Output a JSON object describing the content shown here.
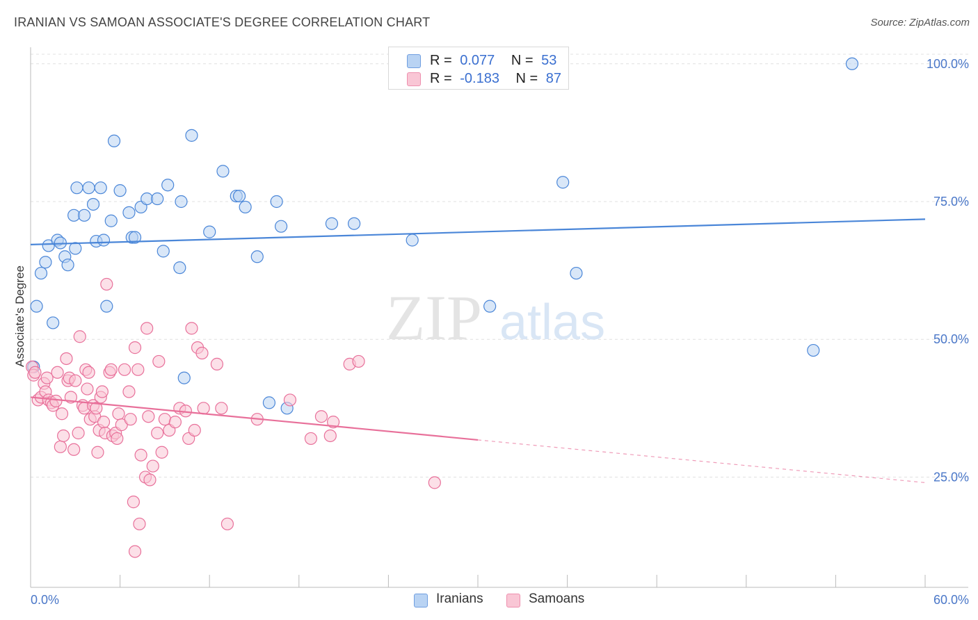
{
  "header": {
    "title": "IRANIAN VS SAMOAN ASSOCIATE'S DEGREE CORRELATION CHART",
    "source": "Source: ZipAtlas.com"
  },
  "watermark": {
    "zip": "ZIP",
    "atlas": "atlas"
  },
  "legend": {
    "rows": [
      {
        "r_label": "R =",
        "r_value": "0.077",
        "n_label": "N =",
        "n_value": "53",
        "color": "#a9c8f0"
      },
      {
        "r_label": "R =",
        "r_value": "-0.183",
        "n_label": "N =",
        "n_value": "87",
        "color": "#f7b9cc"
      }
    ]
  },
  "bottom_legend": [
    {
      "label": "Iranians",
      "color": "#a9c8f0"
    },
    {
      "label": "Samoans",
      "color": "#f7b9cc"
    }
  ],
  "chart_data": {
    "type": "scatter",
    "xlabel": "",
    "ylabel": "Associate's Degree",
    "xlim": [
      0,
      60
    ],
    "ylim": [
      5,
      103
    ],
    "x_tick_labels": [
      {
        "value": 0,
        "label": "0.0%"
      },
      {
        "value": 60,
        "label": "60.0%"
      }
    ],
    "y_tick_labels": [
      {
        "value": 25,
        "label": "25.0%"
      },
      {
        "value": 50,
        "label": "50.0%"
      },
      {
        "value": 75,
        "label": "75.0%"
      },
      {
        "value": 100,
        "label": "100.0%"
      }
    ],
    "grid": {
      "horizontal": true,
      "vertical": false,
      "style": "dashed"
    },
    "series": [
      {
        "name": "Iranians",
        "color": "#4a86d8",
        "fill": "#b9d3f3",
        "trend": {
          "x": [
            0,
            60
          ],
          "y": [
            67.2,
            71.8
          ],
          "solid_until": 60
        },
        "points": [
          [
            0.2,
            45.0
          ],
          [
            0.4,
            56.0
          ],
          [
            0.7,
            62.0
          ],
          [
            1.0,
            64.0
          ],
          [
            1.2,
            67.0
          ],
          [
            1.5,
            53.0
          ],
          [
            1.8,
            68.0
          ],
          [
            2.0,
            67.5
          ],
          [
            2.3,
            65.0
          ],
          [
            2.5,
            63.5
          ],
          [
            3.0,
            66.5
          ],
          [
            2.9,
            72.5
          ],
          [
            3.1,
            77.5
          ],
          [
            3.6,
            72.5
          ],
          [
            3.9,
            77.5
          ],
          [
            4.2,
            74.5
          ],
          [
            4.4,
            67.8
          ],
          [
            4.7,
            77.5
          ],
          [
            4.9,
            68.0
          ],
          [
            5.1,
            56.0
          ],
          [
            5.4,
            71.5
          ],
          [
            5.6,
            86.0
          ],
          [
            6.0,
            77.0
          ],
          [
            6.6,
            73.0
          ],
          [
            6.8,
            68.5
          ],
          [
            7.0,
            68.5
          ],
          [
            7.4,
            74.0
          ],
          [
            7.8,
            75.5
          ],
          [
            8.5,
            75.5
          ],
          [
            8.9,
            66.0
          ],
          [
            9.2,
            78.0
          ],
          [
            10.0,
            63.0
          ],
          [
            10.1,
            75.0
          ],
          [
            10.3,
            43.0
          ],
          [
            10.8,
            87.0
          ],
          [
            12.0,
            69.5
          ],
          [
            12.9,
            80.5
          ],
          [
            13.8,
            76.0
          ],
          [
            14.0,
            76.0
          ],
          [
            14.4,
            74.0
          ],
          [
            15.2,
            65.0
          ],
          [
            16.0,
            38.5
          ],
          [
            16.5,
            75.0
          ],
          [
            16.8,
            70.5
          ],
          [
            17.2,
            37.5
          ],
          [
            20.2,
            71.0
          ],
          [
            21.7,
            71.0
          ],
          [
            25.6,
            68.0
          ],
          [
            30.8,
            56.0
          ],
          [
            35.7,
            78.5
          ],
          [
            36.6,
            62.0
          ],
          [
            52.5,
            48.0
          ],
          [
            55.1,
            100.0
          ]
        ]
      },
      {
        "name": "Samoans",
        "color": "#e8709a",
        "fill": "#f9c6d5",
        "trend": {
          "x": [
            0,
            60
          ],
          "y": [
            39.5,
            24.0
          ],
          "solid_until": 30
        },
        "points": [
          [
            0.1,
            45.0
          ],
          [
            0.2,
            43.5
          ],
          [
            0.5,
            39.0
          ],
          [
            0.7,
            39.5
          ],
          [
            0.9,
            42.0
          ],
          [
            1.0,
            40.5
          ],
          [
            1.1,
            43.0
          ],
          [
            1.2,
            39.0
          ],
          [
            1.4,
            38.5
          ],
          [
            1.5,
            38.0
          ],
          [
            1.7,
            38.8
          ],
          [
            1.8,
            44.0
          ],
          [
            2.0,
            30.5
          ],
          [
            2.1,
            36.5
          ],
          [
            2.2,
            32.5
          ],
          [
            2.4,
            46.5
          ],
          [
            2.5,
            42.5
          ],
          [
            2.6,
            43.0
          ],
          [
            2.7,
            39.5
          ],
          [
            2.9,
            30.0
          ],
          [
            3.0,
            42.5
          ],
          [
            3.2,
            33.0
          ],
          [
            3.3,
            50.5
          ],
          [
            3.5,
            38.0
          ],
          [
            3.6,
            37.5
          ],
          [
            3.7,
            44.5
          ],
          [
            3.8,
            41.0
          ],
          [
            3.9,
            44.0
          ],
          [
            4.0,
            35.5
          ],
          [
            4.2,
            38.0
          ],
          [
            4.3,
            36.0
          ],
          [
            4.4,
            37.5
          ],
          [
            4.5,
            29.5
          ],
          [
            4.6,
            33.5
          ],
          [
            4.7,
            39.5
          ],
          [
            4.8,
            40.5
          ],
          [
            4.9,
            35.0
          ],
          [
            5.0,
            33.0
          ],
          [
            5.1,
            60.0
          ],
          [
            5.3,
            44.0
          ],
          [
            5.4,
            44.5
          ],
          [
            5.5,
            32.5
          ],
          [
            5.7,
            33.0
          ],
          [
            5.8,
            32.0
          ],
          [
            5.9,
            36.5
          ],
          [
            6.1,
            34.5
          ],
          [
            6.3,
            44.5
          ],
          [
            6.6,
            40.5
          ],
          [
            6.7,
            35.5
          ],
          [
            6.9,
            20.5
          ],
          [
            7.0,
            48.5
          ],
          [
            7.2,
            44.5
          ],
          [
            7.3,
            16.5
          ],
          [
            7.4,
            29.0
          ],
          [
            7.0,
            11.5
          ],
          [
            7.7,
            25.0
          ],
          [
            7.8,
            52.0
          ],
          [
            7.9,
            36.0
          ],
          [
            8.0,
            24.5
          ],
          [
            8.2,
            27.0
          ],
          [
            8.5,
            33.0
          ],
          [
            8.6,
            46.0
          ],
          [
            8.8,
            29.5
          ],
          [
            9.0,
            35.5
          ],
          [
            9.3,
            33.5
          ],
          [
            9.7,
            35.0
          ],
          [
            10.0,
            37.5
          ],
          [
            10.4,
            37.0
          ],
          [
            10.6,
            32.0
          ],
          [
            10.8,
            52.0
          ],
          [
            11.0,
            33.5
          ],
          [
            11.2,
            48.5
          ],
          [
            11.5,
            47.5
          ],
          [
            11.6,
            37.5
          ],
          [
            12.5,
            45.5
          ],
          [
            12.8,
            37.5
          ],
          [
            13.2,
            16.5
          ],
          [
            15.2,
            35.5
          ],
          [
            17.4,
            39.0
          ],
          [
            18.8,
            32.0
          ],
          [
            19.5,
            36.0
          ],
          [
            20.1,
            32.5
          ],
          [
            20.3,
            35.0
          ],
          [
            21.4,
            45.5
          ],
          [
            22.0,
            46.0
          ],
          [
            27.1,
            24.0
          ],
          [
            0.3,
            44.0
          ]
        ]
      }
    ]
  }
}
